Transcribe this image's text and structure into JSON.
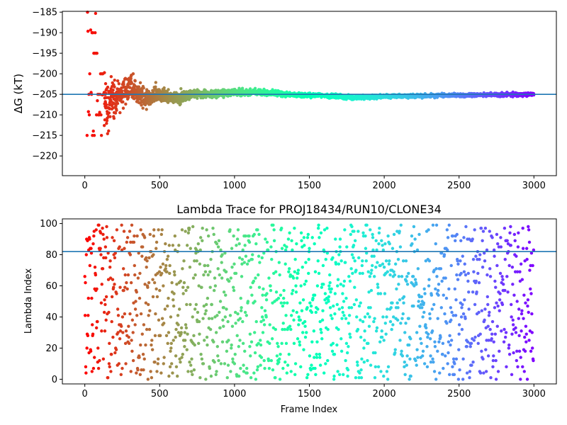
{
  "chart_data": [
    {
      "type": "scatter",
      "title": "",
      "xlabel": "",
      "ylabel": "ΔG (kT)",
      "xlim": [
        -150,
        3150
      ],
      "ylim": [
        -224.8,
        -184.8
      ],
      "xticks": [
        0,
        500,
        1000,
        1500,
        2000,
        2500,
        3000
      ],
      "yticks": [
        -185,
        -190,
        -195,
        -200,
        -205,
        -210,
        -215,
        -220
      ],
      "hline": -205,
      "hline_color": "#1f77b4",
      "colormap": "rainbow (red at frame 0 to violet at frame 3000)",
      "points_n": 3000,
      "trend": [
        [
          20,
          -210
        ],
        [
          40,
          -190
        ],
        [
          60,
          -200
        ],
        [
          80,
          -205
        ],
        [
          100,
          -210
        ],
        [
          120,
          -207
        ],
        [
          150,
          -208
        ],
        [
          200,
          -206
        ],
        [
          250,
          -205
        ],
        [
          300,
          -203
        ],
        [
          400,
          -206
        ],
        [
          500,
          -205
        ],
        [
          600,
          -206
        ],
        [
          700,
          -205
        ],
        [
          800,
          -205
        ],
        [
          1000,
          -204.5
        ],
        [
          1200,
          -204.5
        ],
        [
          1400,
          -205.2
        ],
        [
          1600,
          -205.3
        ],
        [
          1800,
          -205.8
        ],
        [
          2000,
          -205.5
        ],
        [
          2500,
          -205.2
        ],
        [
          3000,
          -205
        ]
      ],
      "spread": [
        [
          0,
          15
        ],
        [
          60,
          15
        ],
        [
          100,
          8
        ],
        [
          150,
          5
        ],
        [
          250,
          3
        ],
        [
          400,
          1.8
        ],
        [
          600,
          1.2
        ],
        [
          800,
          0.8
        ],
        [
          1100,
          0.6
        ],
        [
          1500,
          0.4
        ],
        [
          3000,
          0.3
        ]
      ]
    },
    {
      "type": "scatter",
      "title": "Lambda Trace for PROJ18434/RUN10/CLONE34",
      "xlabel": "Frame Index",
      "ylabel": "Lambda Index",
      "xlim": [
        -150,
        3150
      ],
      "ylim": [
        -3,
        103
      ],
      "xticks": [
        0,
        500,
        1000,
        1500,
        2000,
        2500,
        3000
      ],
      "yticks": [
        0,
        20,
        40,
        60,
        80,
        100
      ],
      "hline": 82,
      "hline_color": "#1f77b4",
      "colormap": "rainbow (red at frame 0 to violet at frame 3000)",
      "points_n": 3000,
      "lambda_range": [
        0,
        99
      ]
    }
  ]
}
